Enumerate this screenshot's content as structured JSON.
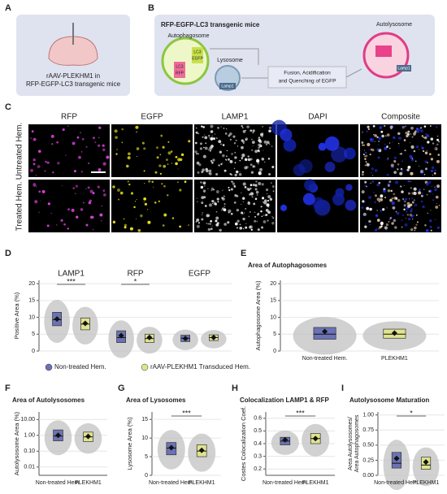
{
  "panel_labels": [
    "A",
    "B",
    "C",
    "D",
    "E",
    "F",
    "G",
    "H",
    "I"
  ],
  "panel_a": {
    "lines": [
      "rAAV-PLEKHM1 in",
      "RFP-EGFP-LC3 transgenic mice"
    ]
  },
  "panel_b": {
    "title": "RFP-EGFP-LC3 transgenic mice",
    "autophagosome": "Autophagosome",
    "lysosome": "Lysosome",
    "lamp1": "Lamp1",
    "lc3": "LC3",
    "egfp": "EGFP",
    "rfp": "RFP",
    "process": [
      "Fusion, Acidification",
      "and Quenching of EGFP"
    ],
    "autolysosome": "Autolysosome"
  },
  "panel_c": {
    "columns": [
      "RFP",
      "EGFP",
      "LAMP1",
      "DAPI",
      "Composite"
    ],
    "rows": [
      "Untreated Hem.",
      "Treated Hem."
    ]
  },
  "legend": [
    {
      "name": "Non-treated Hem.",
      "color": "#6b73b5"
    },
    {
      "name": "rAAV-PLEKHM1 Transduced Hem.",
      "color": "#e0e38f"
    }
  ],
  "chart_data": [
    {
      "type": "box",
      "ylabel": "Positive Area (%)",
      "ylim": [
        0,
        21
      ],
      "yticks": [
        0,
        5,
        10,
        15,
        20
      ],
      "grid": true,
      "groups": [
        {
          "label": "LAMP1",
          "significance": "***",
          "boxes": [
            {
              "q1": 7.5,
              "median": 9.3,
              "q3": 11.5,
              "mean": 9.5
            },
            {
              "q1": 6.3,
              "median": 8,
              "q3": 9.8,
              "mean": 8.2
            }
          ]
        },
        {
          "label": "RFP",
          "significance": "*",
          "boxes": [
            {
              "q1": 2.5,
              "median": 4,
              "q3": 6,
              "mean": 4.6
            },
            {
              "q1": 2.5,
              "median": 3.7,
              "q3": 5,
              "mean": 4
            }
          ]
        },
        {
          "label": "EGFP",
          "boxes": [
            {
              "q1": 2.8,
              "median": 3.8,
              "q3": 4.7,
              "mean": 3.7
            },
            {
              "q1": 3.1,
              "median": 4,
              "q3": 4.8,
              "mean": 4
            }
          ]
        }
      ]
    },
    {
      "type": "box",
      "title": "Area of Autophagosomes",
      "ylabel": "Autophagosome Area (%)",
      "ylim": [
        0,
        21
      ],
      "yticks": [
        0,
        5,
        10,
        15,
        20
      ],
      "grid": true,
      "categories": [
        "Non-treated Hem.",
        "PLEKHM1"
      ],
      "groups": [
        {
          "boxes": [
            {
              "q1": 3.5,
              "median": 5,
              "q3": 7,
              "mean": 5.8
            },
            {
              "q1": 3.8,
              "median": 5,
              "q3": 6.5,
              "mean": 5.3
            }
          ]
        }
      ]
    },
    {
      "type": "box",
      "title": "Area of Autolysosomes",
      "ylabel": "Autolysosome Area (%)",
      "log": true,
      "ylim": [
        0.003,
        30
      ],
      "yticks": [
        0.01,
        {
          "value": 0.1,
          "label": "0.10"
        },
        {
          "value": 1,
          "label": "1.00"
        },
        {
          "value": 10,
          "label": "10.00"
        }
      ],
      "grid": true,
      "categories": [
        "Non-treated Hem.",
        "PLEKHM1"
      ],
      "groups": [
        {
          "boxes": [
            {
              "q1": 0.45,
              "median": 0.9,
              "q3": 2.2,
              "mean": 1
            },
            {
              "q1": 0.4,
              "median": 0.8,
              "q3": 1.6,
              "mean": 0.85
            }
          ]
        }
      ]
    },
    {
      "type": "box",
      "title": "Area of Lysosomes",
      "ylabel": "Lysosome Area (%)",
      "ylim": [
        0,
        17
      ],
      "yticks": [
        0,
        5,
        10,
        15
      ],
      "grid": true,
      "categories": [
        "Non-treated Hem.",
        "PLEKHM1"
      ],
      "groups": [
        {
          "significance": "***",
          "boxes": [
            {
              "q1": 5.5,
              "median": 7.3,
              "q3": 8.8,
              "mean": 7.4
            },
            {
              "q1": 5,
              "median": 6.5,
              "q3": 8.2,
              "mean": 6.7
            }
          ]
        }
      ]
    },
    {
      "type": "box",
      "title": "Colocalization LAMP1 & RFP",
      "ylabel": "Costes Colocalization Coef.",
      "ylim": [
        0.15,
        0.65
      ],
      "yticks": [
        0.2,
        0.3,
        0.4,
        0.5,
        0.6
      ],
      "grid": true,
      "categories": [
        "Non-treated Hem.",
        "PLEKHM1"
      ],
      "groups": [
        {
          "significance": "***",
          "boxes": [
            {
              "q1": 0.39,
              "median": 0.42,
              "q3": 0.45,
              "mean": 0.43
            },
            {
              "q1": 0.4,
              "median": 0.44,
              "q3": 0.48,
              "mean": 0.44
            }
          ]
        }
      ]
    },
    {
      "type": "box",
      "title": "Autolysosome Maturation",
      "ylabel": [
        "Area Autolysosomes/",
        "Area Autophagosomes"
      ],
      "ylim": [
        0,
        1.05
      ],
      "yticks": [
        {
          "value": 0,
          "label": "0.00"
        },
        {
          "value": 0.25,
          "label": "0.25"
        },
        {
          "value": 0.5,
          "label": "0.50"
        },
        {
          "value": 0.75,
          "label": "0.75"
        },
        {
          "value": 1,
          "label": "1.00"
        }
      ],
      "grid": true,
      "categories": [
        "Non-treated Hem.",
        "PLEKHM1"
      ],
      "groups": [
        {
          "significance": "*",
          "boxes": [
            {
              "q1": 0.12,
              "median": 0.2,
              "q3": 0.38,
              "mean": 0.28
            },
            {
              "q1": 0.1,
              "median": 0.17,
              "q3": 0.3,
              "mean": 0.22
            }
          ]
        }
      ]
    }
  ]
}
